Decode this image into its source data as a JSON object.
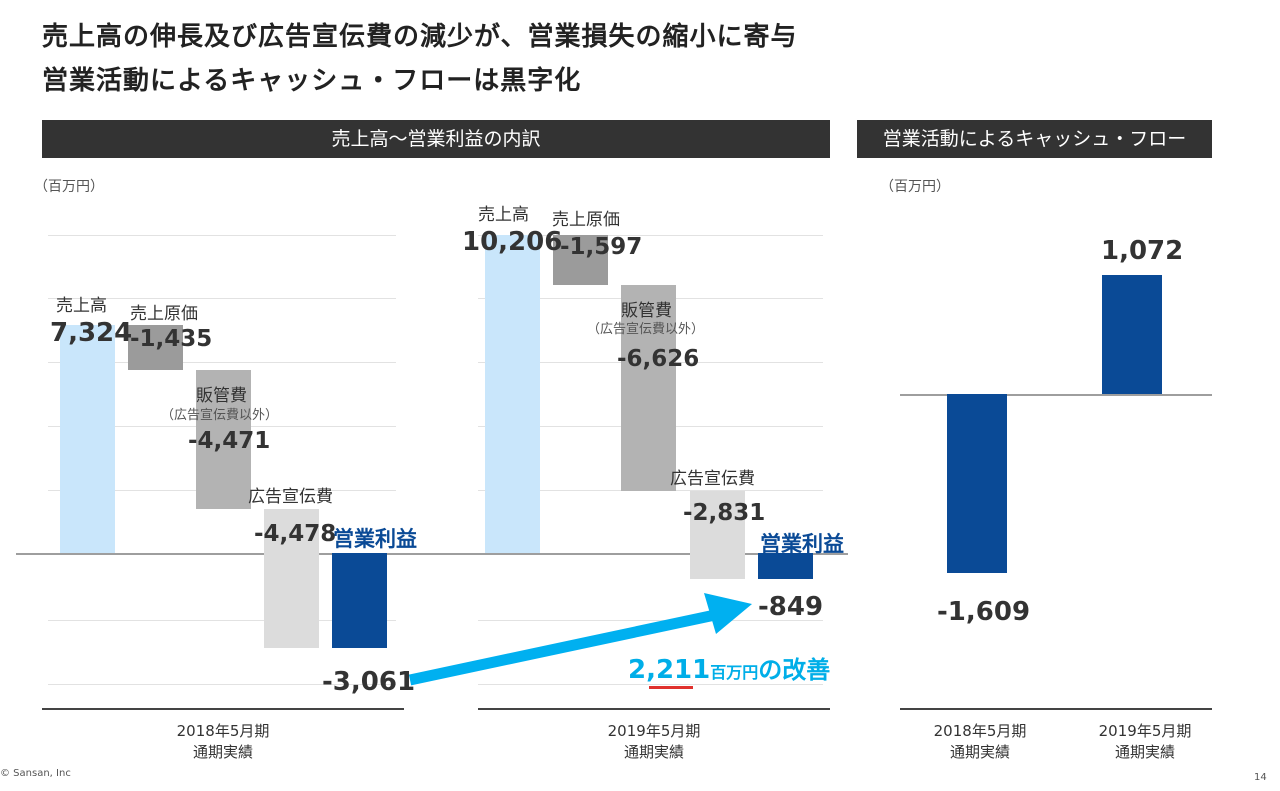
{
  "headline": {
    "line1": "売上高の伸長及び広告宣伝費の減少が、営業損失の縮小に寄与",
    "line2": "営業活動によるキャッシュ・フローは黒字化"
  },
  "left_panel": {
    "header": "売上高〜営業利益の内訳",
    "unit": "（百万円）"
  },
  "right_panel": {
    "header": "営業活動によるキャッシュ・フロー",
    "unit": "（百万円）"
  },
  "colors": {
    "sales": "#c9e6fb",
    "cogs": "#9b9b9b",
    "sga": "#b3b3b3",
    "ad": "#dcdcdc",
    "profit": "#0a4a96",
    "arrow": "#00b0f0",
    "underline": "#e0312d",
    "improve": "#00aee8"
  },
  "chart_data": [
    {
      "type": "waterfall",
      "title": "売上高〜営業利益の内訳",
      "unit": "百万円",
      "periods": [
        {
          "period": "2018年5月期",
          "sub": "通期実績",
          "steps": [
            {
              "label": "売上高",
              "sub": "",
              "value": 7324,
              "display": "7,324"
            },
            {
              "label": "売上原価",
              "sub": "",
              "value": -1435,
              "display": "-1,435"
            },
            {
              "label": "販管費",
              "sub": "（広告宣伝費以外）",
              "value": -4471,
              "display": "-4,471"
            },
            {
              "label": "広告宣伝費",
              "sub": "",
              "value": -4478,
              "display": "-4,478"
            },
            {
              "label": "営業利益",
              "sub": "",
              "value": -3061,
              "display": "-3,061",
              "total": true
            }
          ]
        },
        {
          "period": "2019年5月期",
          "sub": "通期実績",
          "steps": [
            {
              "label": "売上高",
              "sub": "",
              "value": 10206,
              "display": "10,206"
            },
            {
              "label": "売上原価",
              "sub": "",
              "value": -1597,
              "display": "-1,597"
            },
            {
              "label": "販管費",
              "sub": "（広告宣伝費以外）",
              "value": -6626,
              "display": "-6,626"
            },
            {
              "label": "広告宣伝費",
              "sub": "",
              "value": -2831,
              "display": "-2,831"
            },
            {
              "label": "営業利益",
              "sub": "",
              "value": -849,
              "display": "-849",
              "total": true
            }
          ]
        }
      ],
      "annotation": {
        "value": "2,211",
        "unit": "百万円",
        "text": "の改善"
      }
    },
    {
      "type": "bar",
      "title": "営業活動によるキャッシュ・フロー",
      "unit": "百万円",
      "categories": [
        "2018年5月期",
        "2019年5月期"
      ],
      "category_sub": [
        "通期実績",
        "通期実績"
      ],
      "values": [
        -1609,
        1072
      ],
      "display": [
        "-1,609",
        "1,072"
      ]
    }
  ],
  "footer": {
    "copyright": "© Sansan, Inc",
    "page": "14"
  }
}
